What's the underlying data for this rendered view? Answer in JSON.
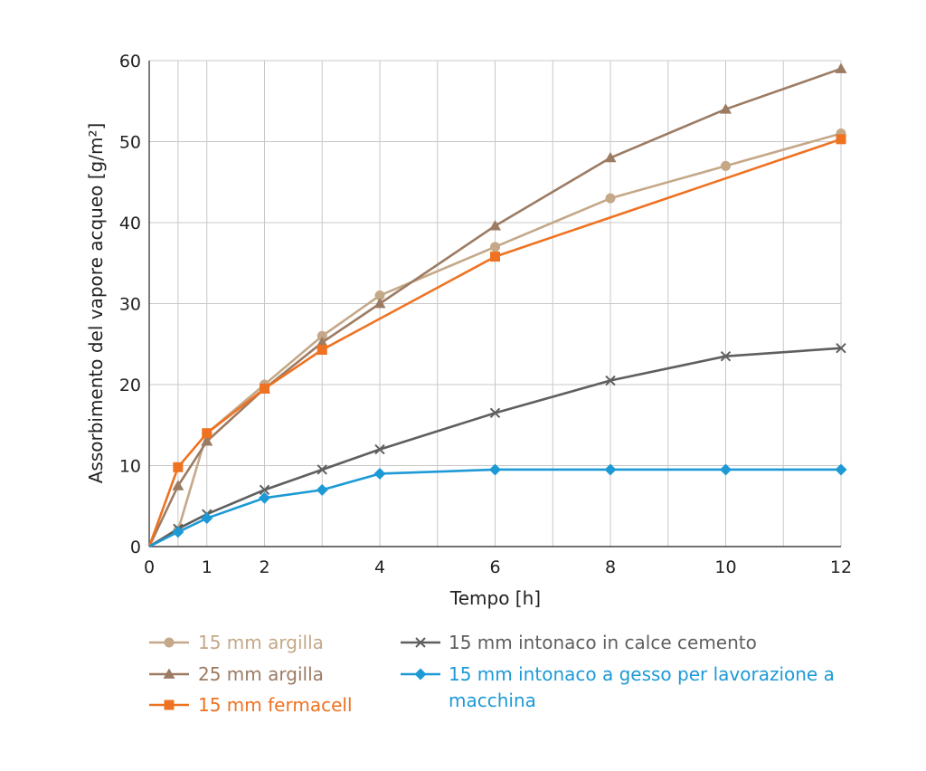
{
  "chart_data": {
    "type": "line",
    "title": "",
    "xlabel": "Tempo [h]",
    "ylabel": "Assorbimento del vapore acqueo [g/m²]",
    "xlim": [
      0,
      12
    ],
    "ylim": [
      0,
      60
    ],
    "x_ticks": [
      0,
      1,
      2,
      4,
      6,
      8,
      10,
      12
    ],
    "y_ticks": [
      0,
      10,
      20,
      30,
      40,
      50,
      60
    ],
    "x_grid": [
      0,
      0.5,
      1,
      2,
      3,
      4,
      5,
      6,
      7,
      8,
      9,
      10,
      11,
      12
    ],
    "grid": true,
    "legend_position": "bottom",
    "series": [
      {
        "name": "15 mm argilla",
        "color": "#c4a888",
        "marker": "circle",
        "x": [
          0,
          0.5,
          1,
          2,
          3,
          4,
          6,
          8,
          10,
          12
        ],
        "y": [
          0,
          2,
          14,
          20,
          26,
          31,
          37,
          43,
          47,
          51
        ]
      },
      {
        "name": "25 mm argilla",
        "color": "#9c7b63",
        "marker": "triangle",
        "x": [
          0,
          0.5,
          1,
          2,
          3,
          4,
          6,
          8,
          10,
          12
        ],
        "y": [
          0,
          7.5,
          13,
          19.5,
          25.2,
          30,
          39.6,
          48,
          54,
          59
        ]
      },
      {
        "name": "15 mm fermacell",
        "color": "#ee7221",
        "marker": "square",
        "x": [
          0,
          0.5,
          1,
          2,
          3,
          6,
          12
        ],
        "y": [
          0,
          9.8,
          14,
          19.5,
          24.3,
          35.8,
          50.3
        ]
      },
      {
        "name": "15 mm intonaco in calce cemento",
        "color": "#5f5f5f",
        "marker": "x",
        "x": [
          0,
          0.5,
          1,
          2,
          3,
          4,
          6,
          8,
          10,
          12
        ],
        "y": [
          0,
          2.2,
          4,
          7,
          9.5,
          12,
          16.5,
          20.5,
          23.5,
          24.5
        ]
      },
      {
        "name": "15 mm intonaco a gesso per lavorazione a macchina",
        "color": "#1d9ad6",
        "marker": "diamond",
        "x": [
          0,
          0.5,
          1,
          2,
          3,
          4,
          6,
          8,
          10,
          12
        ],
        "y": [
          0,
          1.8,
          3.5,
          6,
          7,
          9,
          9.5,
          9.5,
          9.5,
          9.5
        ]
      }
    ],
    "legend": {
      "left": [
        "15 mm argilla",
        "25 mm argilla",
        "15 mm fermacell"
      ],
      "right": [
        "15 mm intonaco in calce cemento",
        "15 mm intonaco a gesso per lavorazione a",
        "macchina"
      ]
    }
  }
}
